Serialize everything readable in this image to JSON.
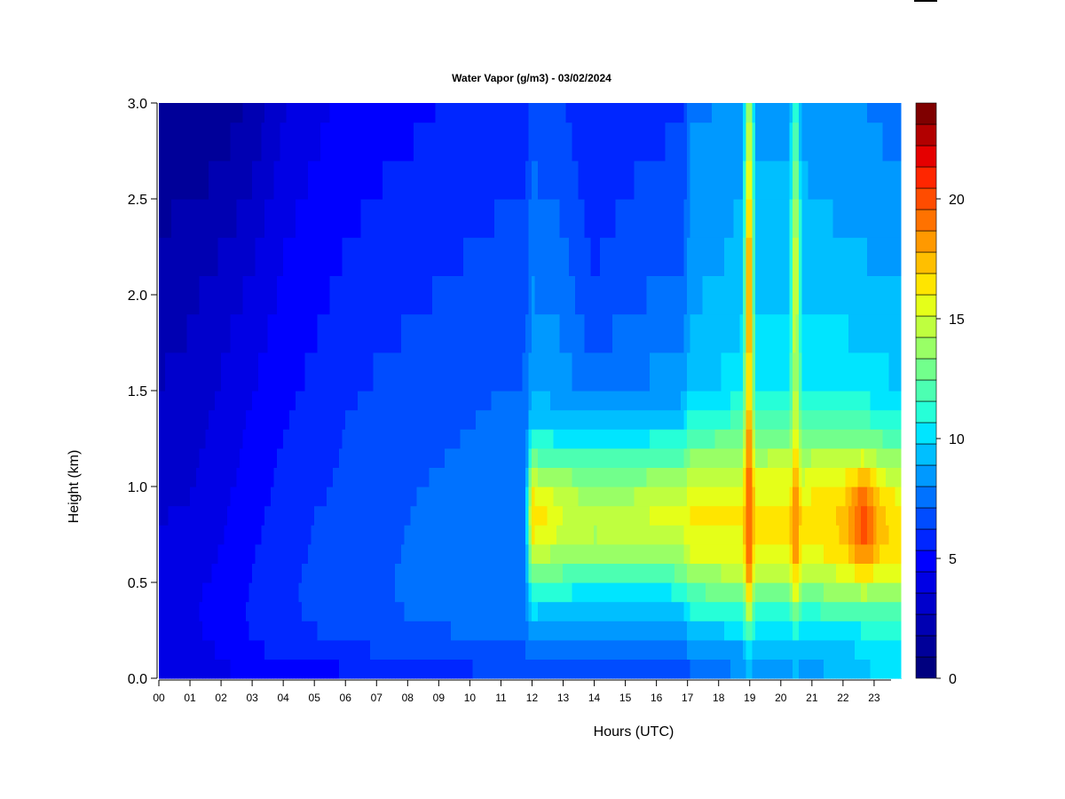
{
  "chart_data": {
    "type": "heatmap",
    "title": "Water Vapor (g/m3) - 03/02/2024",
    "xlabel": "Hours (UTC)",
    "ylabel": "Height (km)",
    "x_tick_labels": [
      "00",
      "01",
      "02",
      "03",
      "04",
      "05",
      "06",
      "07",
      "08",
      "09",
      "10",
      "11",
      "12",
      "13",
      "14",
      "15",
      "16",
      "17",
      "18",
      "19",
      "20",
      "21",
      "22",
      "23"
    ],
    "xlim": [
      0,
      24
    ],
    "y_tick_labels": [
      "0.0",
      "0.5",
      "1.0",
      "1.5",
      "2.0",
      "2.5",
      "3.0"
    ],
    "ylim": [
      0,
      3.0
    ],
    "colorbar": {
      "tick_labels": [
        "0",
        "5",
        "10",
        "15",
        "20"
      ],
      "range": [
        0,
        24
      ],
      "levels": 24,
      "colors": [
        "#00007f",
        "#000099",
        "#0000b2",
        "#0000cc",
        "#0000e5",
        "#0000ff",
        "#0026ff",
        "#004cff",
        "#0072ff",
        "#0099ff",
        "#00bfff",
        "#00e5ff",
        "#26ffd8",
        "#4cffb2",
        "#72ff8c",
        "#99ff66",
        "#bfff3f",
        "#e5ff19",
        "#ffe500",
        "#ffbf00",
        "#ff9900",
        "#ff7200",
        "#ff4c00",
        "#ff2600",
        "#e50000",
        "#b20000",
        "#7f0000"
      ]
    },
    "heights": [
      0.0,
      0.1,
      0.2,
      0.3,
      0.4,
      0.5,
      0.6,
      0.7,
      0.8,
      0.9,
      1.0,
      1.1,
      1.2,
      1.3,
      1.4,
      1.5,
      1.7,
      1.9,
      2.1,
      2.3,
      2.5,
      2.7,
      2.9,
      3.0
    ],
    "profiles": [
      {
        "t": 0.0,
        "v": [
          4.0,
          4.1,
          4.2,
          4.2,
          4.2,
          4.1,
          4.0,
          3.9,
          3.7,
          3.5,
          3.3,
          3.2,
          3.1,
          3.0,
          2.9,
          2.8,
          2.6,
          2.4,
          2.2,
          1.9,
          1.6,
          1.3,
          1.1,
          1.0
        ]
      },
      {
        "t": 1.0,
        "v": [
          4.1,
          4.3,
          4.4,
          4.5,
          4.5,
          4.4,
          4.3,
          4.2,
          4.0,
          3.8,
          3.6,
          3.5,
          3.4,
          3.3,
          3.2,
          3.1,
          2.9,
          2.7,
          2.5,
          2.2,
          1.8,
          1.5,
          1.2,
          1.0
        ]
      },
      {
        "t": 2.0,
        "v": [
          4.3,
          4.6,
          4.8,
          4.9,
          4.9,
          4.8,
          4.7,
          4.6,
          4.5,
          4.4,
          4.3,
          4.2,
          4.1,
          4.0,
          3.9,
          3.8,
          3.6,
          3.3,
          3.0,
          2.6,
          2.2,
          1.8,
          1.4,
          1.2
        ]
      },
      {
        "t": 3.0,
        "v": [
          4.8,
          5.3,
          5.5,
          5.7,
          5.7,
          5.6,
          5.5,
          5.4,
          5.3,
          5.2,
          5.1,
          5.0,
          4.9,
          4.8,
          4.7,
          4.6,
          4.4,
          4.1,
          3.8,
          3.4,
          3.0,
          2.6,
          2.2,
          2.0
        ]
      },
      {
        "t": 4.0,
        "v": [
          4.8,
          5.5,
          6.0,
          6.2,
          6.2,
          6.2,
          6.1,
          6.0,
          6.0,
          5.9,
          5.8,
          5.7,
          5.6,
          5.5,
          5.4,
          5.3,
          5.1,
          4.9,
          4.7,
          4.5,
          4.3,
          4.0,
          3.7,
          3.5
        ]
      },
      {
        "t": 5.0,
        "v": [
          4.7,
          5.6,
          6.3,
          6.6,
          6.7,
          6.7,
          6.6,
          6.5,
          6.5,
          6.4,
          6.3,
          6.2,
          6.1,
          6.0,
          5.9,
          5.8,
          5.6,
          5.4,
          5.2,
          5.0,
          4.8,
          4.6,
          4.4,
          4.3
        ]
      },
      {
        "t": 6.0,
        "v": [
          5.3,
          6.0,
          6.5,
          6.8,
          6.9,
          6.9,
          6.8,
          6.8,
          6.7,
          6.7,
          6.6,
          6.6,
          6.5,
          6.5,
          6.4,
          6.3,
          6.1,
          5.9,
          5.7,
          5.5,
          5.3,
          5.1,
          4.9,
          4.8
        ]
      },
      {
        "t": 7.0,
        "v": [
          5.8,
          6.3,
          6.7,
          7.0,
          7.2,
          7.2,
          7.2,
          7.1,
          7.1,
          7.0,
          7.0,
          6.9,
          6.9,
          6.8,
          6.7,
          6.6,
          6.4,
          6.2,
          6.0,
          5.8,
          5.6,
          5.4,
          5.2,
          5.1
        ]
      },
      {
        "t": 8.0,
        "v": [
          6.0,
          6.5,
          6.9,
          7.3,
          7.5,
          7.5,
          7.5,
          7.4,
          7.4,
          7.3,
          7.3,
          7.2,
          7.1,
          7.0,
          6.9,
          6.8,
          6.6,
          6.4,
          6.2,
          6.0,
          5.8,
          5.6,
          5.4,
          5.3
        ]
      },
      {
        "t": 9.0,
        "v": [
          6.0,
          6.6,
          7.1,
          7.5,
          7.7,
          7.8,
          7.8,
          7.7,
          7.6,
          7.6,
          7.5,
          7.4,
          7.3,
          7.2,
          7.1,
          7.0,
          6.8,
          6.6,
          6.4,
          6.2,
          6.0,
          5.8,
          5.6,
          5.5
        ]
      },
      {
        "t": 10.0,
        "v": [
          6.1,
          6.8,
          7.3,
          7.7,
          7.9,
          8.0,
          8.0,
          7.9,
          7.9,
          7.8,
          7.7,
          7.6,
          7.5,
          7.4,
          7.3,
          7.2,
          7.0,
          6.8,
          6.6,
          6.4,
          6.2,
          6.0,
          5.8,
          5.7
        ]
      },
      {
        "t": 11.0,
        "v": [
          6.2,
          6.9,
          7.4,
          7.8,
          8.1,
          8.2,
          8.2,
          8.1,
          8.1,
          8.0,
          7.9,
          7.8,
          7.7,
          7.6,
          7.5,
          7.4,
          7.2,
          7.0,
          6.8,
          6.6,
          6.4,
          6.2,
          6.0,
          5.9
        ]
      },
      {
        "t": 11.8,
        "v": [
          6.3,
          7.0,
          7.5,
          7.9,
          8.2,
          8.3,
          8.3,
          8.2,
          8.2,
          8.1,
          8.0,
          7.9,
          7.8,
          7.7,
          7.6,
          7.5,
          7.3,
          7.1,
          6.9,
          6.7,
          6.5,
          6.3,
          6.1,
          6.0
        ]
      },
      {
        "t": 12.0,
        "v": [
          6.5,
          7.5,
          8.6,
          9.6,
          10.8,
          12.5,
          14.5,
          16.0,
          17.5,
          17.5,
          16.0,
          14.0,
          12.0,
          10.5,
          9.8,
          9.3,
          8.8,
          8.5,
          8.2,
          7.9,
          7.6,
          7.3,
          7.0,
          6.8
        ]
      },
      {
        "t": 13.0,
        "v": [
          6.5,
          7.4,
          8.5,
          9.4,
          10.4,
          12.0,
          13.8,
          15.0,
          15.8,
          15.6,
          14.8,
          13.3,
          11.8,
          10.2,
          9.3,
          8.8,
          8.4,
          8.1,
          7.8,
          7.5,
          7.2,
          6.9,
          6.6,
          6.5
        ]
      },
      {
        "t": 14.0,
        "v": [
          6.4,
          7.2,
          8.3,
          9.2,
          10.0,
          11.5,
          13.3,
          14.5,
          15.0,
          14.8,
          14.0,
          12.8,
          11.3,
          9.8,
          8.7,
          8.0,
          7.2,
          6.8,
          6.5,
          6.2,
          6.0,
          5.8,
          5.7,
          5.6
        ]
      },
      {
        "t": 15.0,
        "v": [
          6.5,
          7.3,
          8.4,
          9.3,
          10.1,
          11.6,
          13.5,
          14.8,
          15.3,
          15.0,
          14.2,
          13.0,
          11.6,
          10.1,
          9.1,
          8.5,
          7.8,
          7.4,
          7.1,
          6.8,
          6.5,
          6.3,
          6.1,
          6.0
        ]
      },
      {
        "t": 16.0,
        "v": [
          6.6,
          7.4,
          8.5,
          9.4,
          10.2,
          11.8,
          13.8,
          15.2,
          16.0,
          15.6,
          14.6,
          13.3,
          11.9,
          10.4,
          9.4,
          8.7,
          8.0,
          7.6,
          7.3,
          7.0,
          6.7,
          6.5,
          6.3,
          6.2
        ]
      },
      {
        "t": 16.9,
        "v": [
          6.6,
          7.4,
          8.5,
          9.4,
          10.3,
          12.0,
          14.0,
          15.3,
          16.0,
          15.8,
          14.8,
          13.5,
          12.0,
          10.6,
          9.6,
          8.9,
          8.2,
          7.8,
          7.5,
          7.2,
          6.9,
          6.7,
          6.5,
          6.4
        ]
      },
      {
        "t": 17.1,
        "v": [
          7.0,
          8.0,
          9.2,
          10.4,
          11.8,
          13.5,
          15.2,
          16.2,
          16.8,
          16.5,
          15.6,
          14.5,
          13.3,
          12.0,
          11.0,
          10.2,
          9.6,
          9.3,
          9.0,
          8.8,
          8.6,
          8.4,
          8.2,
          8.1
        ]
      },
      {
        "t": 18.0,
        "v": [
          7.5,
          8.3,
          9.4,
          10.8,
          12.3,
          14.0,
          15.5,
          16.4,
          16.8,
          16.6,
          15.8,
          14.8,
          13.6,
          12.3,
          11.2,
          10.4,
          9.8,
          9.5,
          9.2,
          9.0,
          8.8,
          8.6,
          8.4,
          8.3
        ]
      },
      {
        "t": 18.8,
        "v": [
          8.5,
          8.9,
          9.6,
          11.0,
          12.5,
          14.2,
          15.6,
          16.3,
          16.8,
          16.6,
          16.0,
          15.0,
          14.0,
          12.8,
          11.8,
          11.0,
          10.4,
          10.0,
          9.7,
          9.5,
          9.3,
          9.1,
          8.9,
          8.8
        ]
      },
      {
        "t": 19.0,
        "v": [
          9.5,
          10.5,
          12.5,
          15.0,
          17.5,
          19.5,
          20.5,
          21.0,
          21.0,
          21.0,
          21.0,
          21.0,
          20.5,
          20.0,
          19.5,
          19.5,
          20.0,
          21.0,
          21.0,
          20.5,
          19.0,
          17.5,
          16.0,
          15.5
        ]
      },
      {
        "t": 19.2,
        "v": [
          8.8,
          9.0,
          9.6,
          11.0,
          12.6,
          14.3,
          15.8,
          16.6,
          17.0,
          16.8,
          16.2,
          15.2,
          14.3,
          13.0,
          12.0,
          11.2,
          10.6,
          10.2,
          9.9,
          9.7,
          9.5,
          9.3,
          9.1,
          9.0
        ]
      },
      {
        "t": 20.3,
        "v": [
          8.8,
          9.0,
          9.6,
          11.0,
          12.8,
          14.6,
          16.0,
          16.8,
          17.0,
          16.8,
          16.2,
          15.3,
          14.3,
          13.0,
          12.0,
          11.2,
          10.6,
          10.2,
          9.9,
          9.7,
          9.5,
          9.3,
          9.1,
          9.0
        ]
      },
      {
        "t": 20.5,
        "v": [
          9.0,
          9.8,
          11.0,
          13.0,
          15.5,
          17.5,
          19.0,
          19.5,
          19.5,
          19.5,
          19.0,
          18.5,
          17.8,
          17.0,
          16.5,
          16.0,
          16.0,
          16.5,
          17.0,
          16.5,
          15.5,
          14.0,
          12.5,
          12.0
        ]
      },
      {
        "t": 20.7,
        "v": [
          8.8,
          9.0,
          9.6,
          11.0,
          12.8,
          14.5,
          15.8,
          16.6,
          17.0,
          16.8,
          16.1,
          15.2,
          14.2,
          12.9,
          11.9,
          11.1,
          10.5,
          10.1,
          9.8,
          9.6,
          9.4,
          9.2,
          9.0,
          8.9
        ]
      },
      {
        "t": 22.0,
        "v": [
          9.5,
          9.6,
          10.0,
          11.2,
          13.0,
          15.0,
          16.6,
          17.4,
          17.8,
          17.5,
          16.8,
          15.6,
          14.4,
          13.0,
          11.9,
          11.1,
          10.4,
          10.0,
          9.6,
          9.3,
          9.0,
          8.8,
          8.6,
          8.5
        ]
      },
      {
        "t": 22.7,
        "v": [
          10.0,
          10.2,
          10.6,
          11.8,
          13.8,
          16.0,
          18.5,
          20.3,
          21.0,
          20.8,
          19.5,
          17.0,
          14.6,
          12.8,
          11.6,
          10.8,
          10.2,
          9.8,
          9.4,
          9.1,
          8.8,
          8.6,
          8.4,
          8.3
        ]
      },
      {
        "t": 23.3,
        "v": [
          10.2,
          10.4,
          10.8,
          11.6,
          13.2,
          15.2,
          16.8,
          17.6,
          17.8,
          17.4,
          16.5,
          15.0,
          13.6,
          12.2,
          11.2,
          10.5,
          9.9,
          9.5,
          9.2,
          8.9,
          8.6,
          8.4,
          8.2,
          8.1
        ]
      },
      {
        "t": 23.9,
        "v": [
          10.3,
          10.5,
          10.8,
          11.6,
          13.0,
          15.0,
          16.5,
          17.2,
          17.4,
          17.0,
          16.0,
          14.6,
          13.2,
          11.9,
          11.0,
          10.3,
          9.8,
          9.4,
          9.1,
          8.8,
          8.5,
          8.3,
          8.1,
          8.0
        ]
      }
    ]
  }
}
